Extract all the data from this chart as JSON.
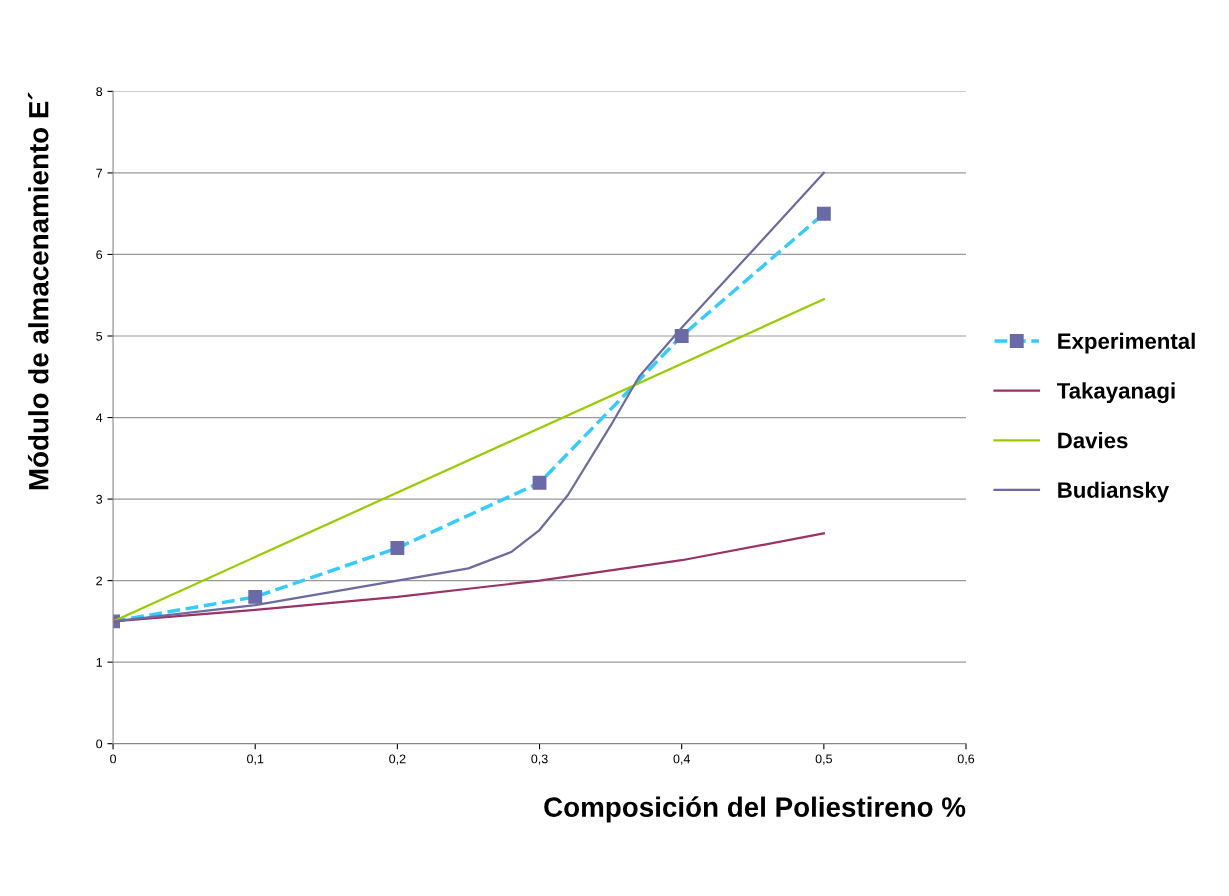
{
  "chart_data": {
    "type": "line",
    "xlabel": "Composición del Poliestireno %",
    "ylabel": "Módulo de almacenamiento E´",
    "xlim": [
      0,
      0.6
    ],
    "ylim": [
      0,
      8
    ],
    "xticks": [
      {
        "value": 0,
        "label": "0"
      },
      {
        "value": 0.1,
        "label": "0,1"
      },
      {
        "value": 0.2,
        "label": "0,2"
      },
      {
        "value": 0.3,
        "label": "0,3"
      },
      {
        "value": 0.4,
        "label": "0,4"
      },
      {
        "value": 0.5,
        "label": "0,5"
      },
      {
        "value": 0.6,
        "label": "0,6"
      }
    ],
    "yticks": [
      0,
      1,
      2,
      3,
      4,
      5,
      6,
      7,
      8
    ],
    "grid": "y",
    "legend": "right",
    "series": [
      {
        "name": "Experimental",
        "color": "#33ccff",
        "line_style": "dashed",
        "marker": "square",
        "x": [
          0,
          0.1,
          0.2,
          0.3,
          0.4,
          0.5
        ],
        "values": [
          1.5,
          1.8,
          2.4,
          3.2,
          5.0,
          6.5
        ]
      },
      {
        "name": "Takayanagi",
        "color": "#993366",
        "line_style": "solid",
        "marker": "none",
        "x": [
          0,
          0.1,
          0.2,
          0.3,
          0.4,
          0.5
        ],
        "values": [
          1.5,
          1.64,
          1.8,
          2.0,
          2.25,
          2.58
        ]
      },
      {
        "name": "Davies",
        "color": "#99cc00",
        "line_style": "solid",
        "marker": "none",
        "x": [
          0,
          0.5
        ],
        "values": [
          1.5,
          5.45
        ]
      },
      {
        "name": "Budiansky",
        "color": "#6b6b9f",
        "line_style": "solid",
        "marker": "none",
        "x": [
          0,
          0.1,
          0.2,
          0.25,
          0.28,
          0.3,
          0.32,
          0.35,
          0.37,
          0.4,
          0.45,
          0.5
        ],
        "values": [
          1.5,
          1.7,
          2.0,
          2.15,
          2.35,
          2.62,
          3.05,
          3.9,
          4.5,
          5.1,
          6.05,
          7.0
        ]
      }
    ]
  }
}
